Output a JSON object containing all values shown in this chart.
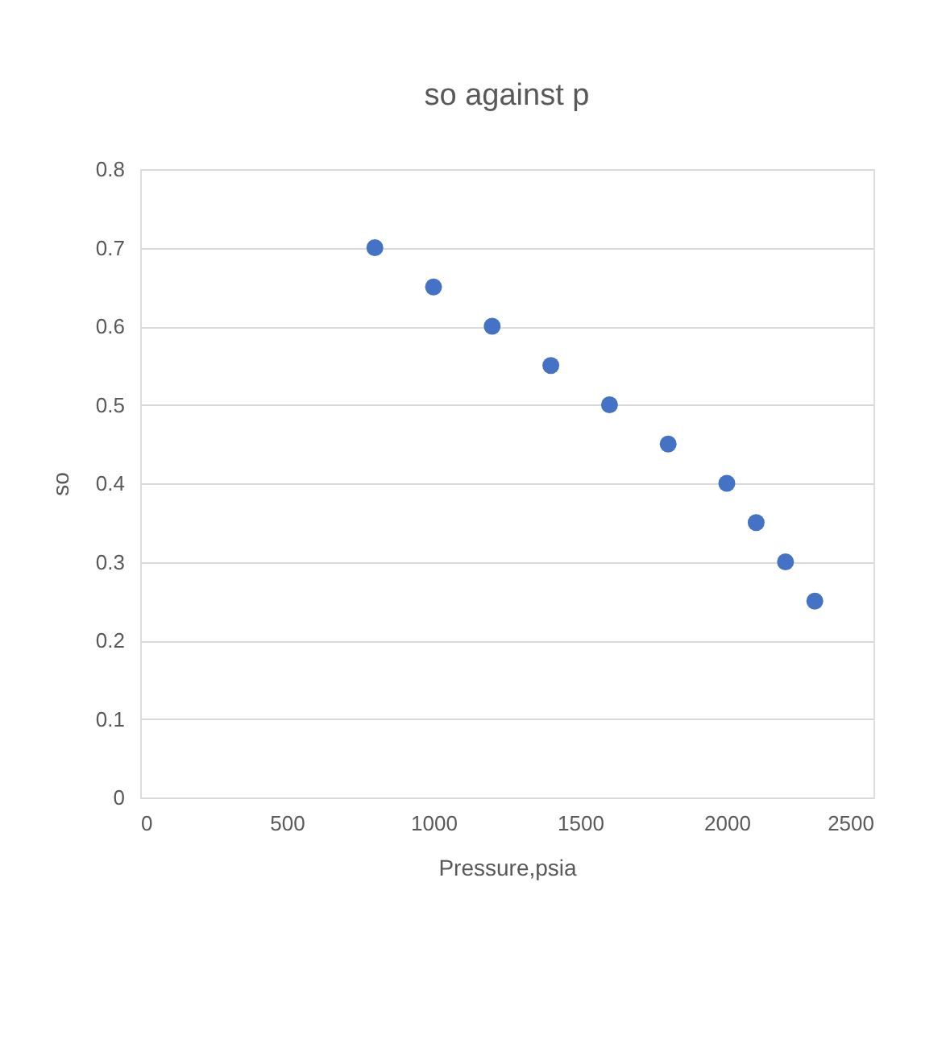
{
  "chart_data": {
    "type": "scatter",
    "title": "so against p",
    "xlabel": "Pressure,psia",
    "ylabel": "so",
    "x": [
      800,
      1000,
      1200,
      1400,
      1600,
      1800,
      2000,
      2100,
      2200,
      2300
    ],
    "series": [
      {
        "color": "#4472c4",
        "values": [
          0.7,
          0.65,
          0.6,
          0.55,
          0.5,
          0.45,
          0.4,
          0.35,
          0.3,
          0.25
        ]
      }
    ],
    "xlim": [
      0,
      2500
    ],
    "xticks": [
      0,
      500,
      1000,
      1500,
      2000,
      2500
    ],
    "ylim": [
      0,
      0.8
    ],
    "yticks": [
      0,
      0.1,
      0.2,
      0.3,
      0.4,
      0.5,
      0.6,
      0.7,
      0.8
    ],
    "grid": "y",
    "marker": "circle"
  }
}
